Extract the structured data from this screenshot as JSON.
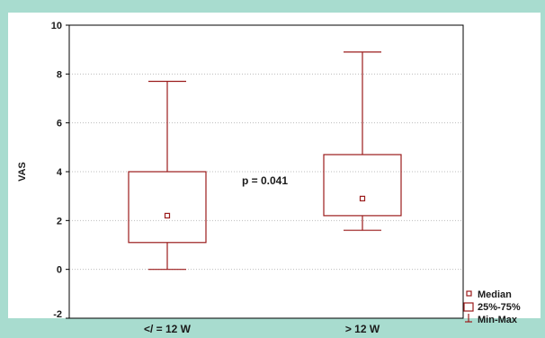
{
  "colors": {
    "frame": "#a8dccf",
    "box": "#9b1c1c",
    "grid": "#bdbdbd",
    "axis": "#000000"
  },
  "chart_data": {
    "type": "box",
    "title": "",
    "xlabel": "",
    "ylabel": "VAS",
    "ylim": [
      -2,
      10
    ],
    "yticks": [
      -2,
      0,
      2,
      4,
      6,
      8,
      10
    ],
    "grid": "horizontal-dotted",
    "categories": [
      "</ = 12 W",
      "> 12 W"
    ],
    "boxes": [
      {
        "median": 2.2,
        "q1": 1.1,
        "q3": 4.0,
        "min": 0.0,
        "max": 7.7
      },
      {
        "median": 2.9,
        "q1": 2.2,
        "q3": 4.7,
        "min": 1.6,
        "max": 8.9
      }
    ],
    "annotation": {
      "text": "p = 0.041",
      "x": 1.5,
      "y": 3.3
    },
    "legend": {
      "position": "bottom-right",
      "items": [
        {
          "label": "Median",
          "symbol": "small-square"
        },
        {
          "label": "25%-75%",
          "symbol": "box"
        },
        {
          "label": "Min-Max",
          "symbol": "whisker"
        }
      ]
    }
  }
}
